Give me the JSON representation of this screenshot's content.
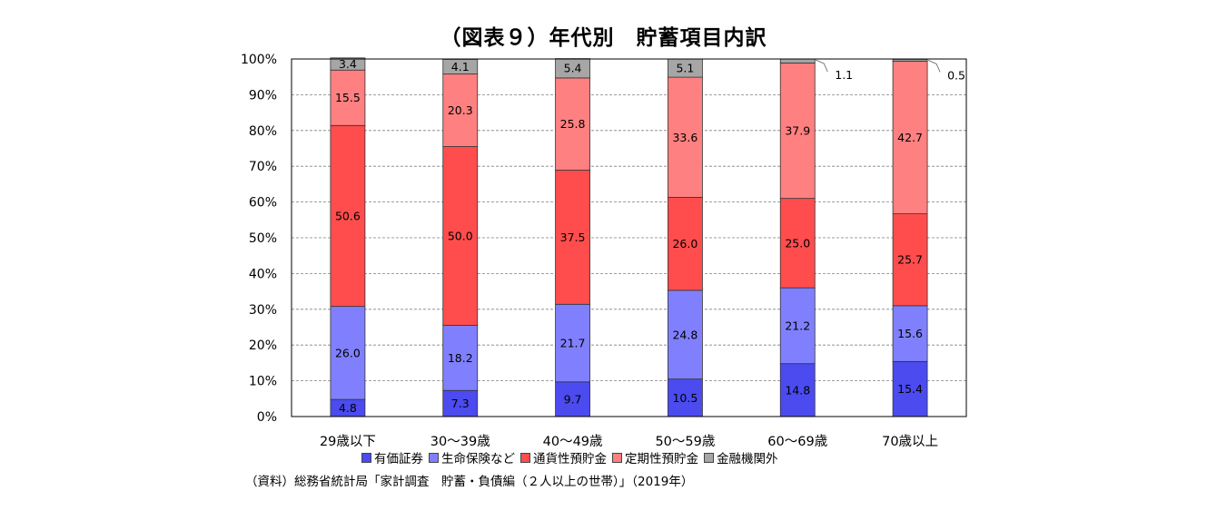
{
  "chart_data": {
    "type": "bar",
    "stacked": true,
    "title": "（図表９）年代別　貯蓄項目内訳",
    "categories": [
      "29歳以下",
      "30～39歳",
      "40～49歳",
      "50～59歳",
      "60～69歳",
      "70歳以上"
    ],
    "series": [
      {
        "name": "有価証券",
        "color": "#4b4bf0",
        "values": [
          4.8,
          7.3,
          9.7,
          10.5,
          14.8,
          15.4
        ]
      },
      {
        "name": "生命保険など",
        "color": "#8080ff",
        "values": [
          26.0,
          18.2,
          21.7,
          24.8,
          21.2,
          15.6
        ]
      },
      {
        "name": "通貨性預貯金",
        "color": "#ff4d4d",
        "values": [
          50.6,
          50.0,
          37.5,
          26.0,
          25.0,
          25.7
        ]
      },
      {
        "name": "定期性預貯金",
        "color": "#ff8080",
        "values": [
          15.5,
          20.3,
          25.8,
          33.6,
          37.9,
          42.7
        ]
      },
      {
        "name": "金融機関外",
        "color": "#a6a6a6",
        "values": [
          3.4,
          4.1,
          5.4,
          5.1,
          1.1,
          0.5
        ]
      }
    ],
    "yticks": [
      "0%",
      "10%",
      "20%",
      "30%",
      "40%",
      "50%",
      "60%",
      "70%",
      "80%",
      "90%",
      "100%"
    ],
    "ylim": [
      0,
      100
    ],
    "grid": true,
    "legend_position": "bottom",
    "source": "（資料）総務省統計局「家計調査　貯蓄・負債編（２人以上の世帯）」（2019年）"
  }
}
